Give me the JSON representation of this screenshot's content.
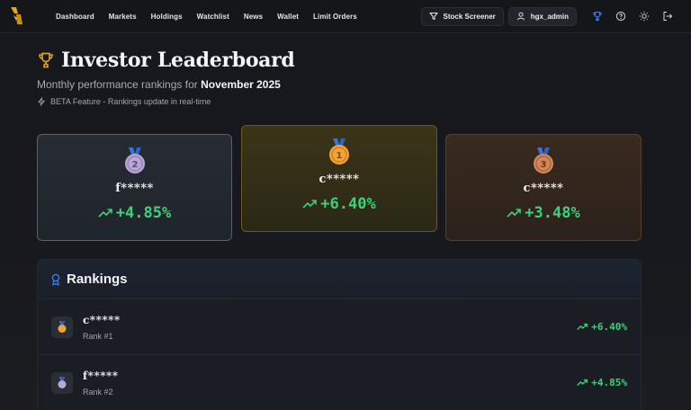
{
  "nav": {
    "links": [
      "Dashboard",
      "Markets",
      "Holdings",
      "Watchlist",
      "News",
      "Wallet",
      "Limit Orders"
    ],
    "screener_label": "Stock Screener",
    "username": "hgx_admin"
  },
  "header": {
    "title": "Investor Leaderboard",
    "subtitle_prefix": "Monthly performance rankings for ",
    "subtitle_month": "November 2025",
    "beta_note": "BETA Feature - Rankings update in real-time"
  },
  "podium": {
    "second": {
      "medal": "2",
      "name": "f*****",
      "change": "+4.85%"
    },
    "first": {
      "medal": "1",
      "name": "c*****",
      "change": "+6.40%"
    },
    "third": {
      "medal": "3",
      "name": "c*****",
      "change": "+3.48%"
    }
  },
  "rankings": {
    "title": "Rankings",
    "rows": [
      {
        "name": "c*****",
        "rank": "Rank #1",
        "change": "+6.40%"
      },
      {
        "name": "f*****",
        "rank": "Rank #2",
        "change": "+4.85%"
      }
    ]
  },
  "colors": {
    "gain": "#3fd07a",
    "gold": "#e2a21c",
    "accent_blue": "#3b82f6"
  }
}
